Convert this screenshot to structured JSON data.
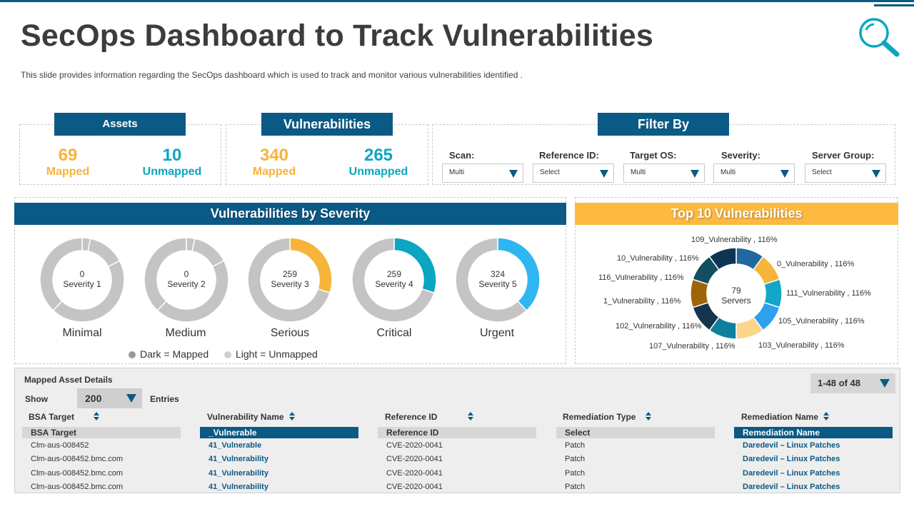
{
  "title": "SecOps Dashboard to Track Vulnerabilities",
  "subtitle": "This slide provides  information  regarding  the SecOps dashboard  which is used to track and  monitor various  vulnerabilities  identified  .",
  "search_icon": "magnifier-icon",
  "colors": {
    "primary": "#0b5a85",
    "orange": "#f7b43b",
    "teal": "#0aa6c2",
    "grey": "#c4c4c4",
    "top10_header": "#fdb940"
  },
  "assets": {
    "header": "Assets",
    "mapped_value": "69",
    "mapped_label": "Mapped",
    "unmapped_value": "10",
    "unmapped_label": "Unmapped"
  },
  "vulnerabilities": {
    "header": "Vulnerabilities",
    "mapped_value": "340",
    "mapped_label": "Mapped",
    "unmapped_value": "265",
    "unmapped_label": "Unmapped"
  },
  "filter_by": {
    "header": "Filter By",
    "filters": [
      {
        "label": "Scan:",
        "value": "Multi"
      },
      {
        "label": "Reference ID:",
        "value": "Select"
      },
      {
        "label": "Target OS:",
        "value": "Multi"
      },
      {
        "label": "Severity:",
        "value": "Multi"
      },
      {
        "label": "Server Group:",
        "value": "Select"
      }
    ]
  },
  "severity_panel": {
    "header": "Vulnerabilities by Severity",
    "donuts": [
      {
        "value": "0",
        "severity": "Severity 1",
        "name": "Minimal",
        "fraction": 0,
        "color": "#c4c4c4"
      },
      {
        "value": "0",
        "severity": "Severity 2",
        "name": "Medium",
        "fraction": 0,
        "color": "#c4c4c4"
      },
      {
        "value": "259",
        "severity": "Severity 3",
        "name": "Serious",
        "fraction": 0.3,
        "color": "#f7b43b"
      },
      {
        "value": "259",
        "severity": "Severity 4",
        "name": "Critical",
        "fraction": 0.3,
        "color": "#0aa6c2"
      },
      {
        "value": "324",
        "severity": "Severity 5",
        "name": "Urgent",
        "fraction": 0.38,
        "color": "#2eb6f2"
      }
    ],
    "legend": {
      "dark": "Dark = Mapped",
      "light": "Light = Unmapped"
    }
  },
  "top10_panel": {
    "header": "Top 10 Vulnerabilities",
    "center_value": "79",
    "center_label": "Servers",
    "slices": [
      {
        "label": "0_Vulnerability , 116%",
        "color": "#1e6aa0"
      },
      {
        "label": "111_Vulnerability , 116%",
        "color": "#f7b43b"
      },
      {
        "label": "105_Vulnerability , 116%",
        "color": "#12a7c9"
      },
      {
        "label": "103_Vulnerability , 116%",
        "color": "#2ea1ee"
      },
      {
        "label": "107_Vulnerability , 116%",
        "color": "#fdd58a"
      },
      {
        "label": "102_Vulnerability , 116%",
        "color": "#0e7f9c"
      },
      {
        "label": "1_Vulnerability , 116%",
        "color": "#14344e"
      },
      {
        "label": "116_Vulnerability , 116%",
        "color": "#9e6508"
      },
      {
        "label": "10_Vulnerability , 116%",
        "color": "#124f62"
      },
      {
        "label": "109_Vulnerability , 116%",
        "color": "#0e3454"
      }
    ]
  },
  "asset_table": {
    "title": "Mapped Asset Details",
    "show_label": "Show",
    "entries_value": "200",
    "entries_label": "Entries",
    "pager": "1-48 of 48",
    "columns": [
      "BSA Target",
      "Vulnerability Name",
      "Reference ID",
      "Remediation Type",
      "Remediation Name"
    ],
    "filters": [
      "BSA Target",
      "_Vulnerable",
      "Reference ID",
      "Select",
      "Remediation Name"
    ],
    "rows": [
      [
        "Clm-aus-008452",
        "41_Vulnerable",
        "CVE-2020-0041",
        "Patch",
        "Daredevil – Linux Patches"
      ],
      [
        "Clm-aus-008452.bmc.com",
        "41_Vulnerability",
        "CVE-2020-0041",
        "Patch",
        "Daredevil – Linux Patches"
      ],
      [
        "Clm-aus-008452.bmc.com",
        "41_Vulnerability",
        "CVE-2020-0041",
        "Patch",
        "Daredevil – Linux Patches"
      ],
      [
        "Clm-aus-008452.bmc.com",
        "41_Vulnerability",
        "CVE-2020-0041",
        "Patch",
        "Daredevil – Linux Patches"
      ]
    ]
  }
}
